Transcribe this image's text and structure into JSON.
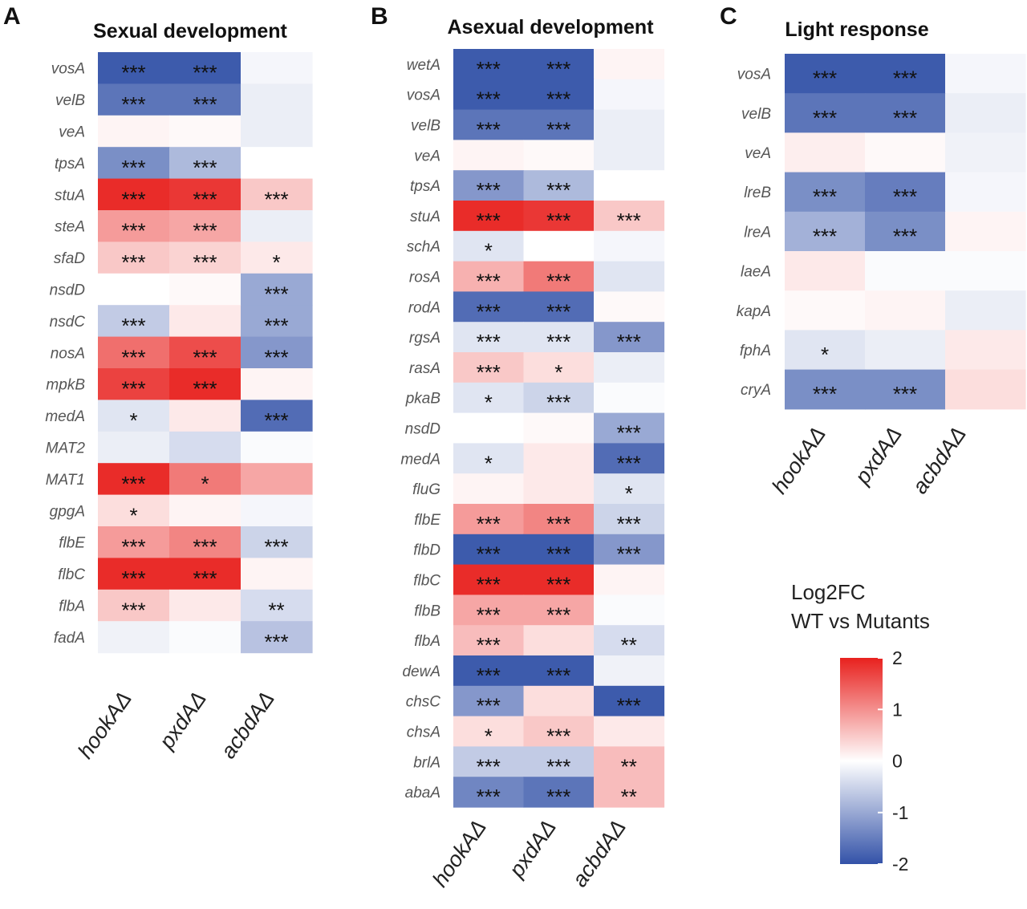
{
  "chart_data": [
    {
      "type": "heatmap",
      "panel": "A",
      "title": "Sexual development",
      "columns": [
        "hookAΔ",
        "pxdAΔ",
        "acbdAΔ"
      ],
      "rows": [
        "vosA",
        "velB",
        "veA",
        "tpsA",
        "stuA",
        "steA",
        "sfaD",
        "nsdD",
        "nsdC",
        "nosA",
        "mpkB",
        "medA",
        "MAT2",
        "MAT1",
        "gpgA",
        "flbE",
        "flbC",
        "flbA",
        "fadA"
      ],
      "values": [
        [
          -1.9,
          -1.9,
          -0.1
        ],
        [
          -1.6,
          -1.6,
          -0.2
        ],
        [
          0.1,
          0.05,
          -0.2
        ],
        [
          -1.3,
          -0.8,
          0.0
        ],
        [
          1.9,
          1.8,
          0.5
        ],
        [
          0.9,
          0.8,
          -0.2
        ],
        [
          0.5,
          0.4,
          0.2
        ],
        [
          0.0,
          0.05,
          -1.0
        ],
        [
          -0.6,
          0.2,
          -1.0
        ],
        [
          1.3,
          1.6,
          -1.2
        ],
        [
          1.7,
          1.9,
          0.1
        ],
        [
          -0.3,
          0.2,
          -1.7
        ],
        [
          -0.2,
          -0.4,
          -0.05
        ],
        [
          1.9,
          1.2,
          0.8
        ],
        [
          0.3,
          0.1,
          -0.1
        ],
        [
          0.9,
          1.1,
          -0.5
        ],
        [
          1.9,
          1.9,
          0.1
        ],
        [
          0.5,
          0.2,
          -0.4
        ],
        [
          -0.15,
          -0.05,
          -0.7
        ]
      ],
      "stars": [
        [
          "***",
          "***",
          ""
        ],
        [
          "***",
          "***",
          ""
        ],
        [
          "",
          "",
          ""
        ],
        [
          "***",
          "***",
          ""
        ],
        [
          "***",
          "***",
          "***"
        ],
        [
          "***",
          "***",
          ""
        ],
        [
          "***",
          "***",
          "*"
        ],
        [
          "",
          "",
          "***"
        ],
        [
          "***",
          "",
          "***"
        ],
        [
          "***",
          "***",
          "***"
        ],
        [
          "***",
          "***",
          ""
        ],
        [
          "*",
          "",
          "***"
        ],
        [
          "",
          "",
          ""
        ],
        [
          "***",
          "*",
          ""
        ],
        [
          "*",
          "",
          ""
        ],
        [
          "***",
          "***",
          "***"
        ],
        [
          "***",
          "***",
          ""
        ],
        [
          "***",
          "",
          "**"
        ],
        [
          "",
          "",
          "***"
        ]
      ]
    },
    {
      "type": "heatmap",
      "panel": "B",
      "title": "Asexual development",
      "columns": [
        "hookAΔ",
        "pxdAΔ",
        "acbdAΔ"
      ],
      "rows": [
        "wetA",
        "vosA",
        "velB",
        "veA",
        "tpsA",
        "stuA",
        "schA",
        "rosA",
        "rodA",
        "rgsA",
        "rasA",
        "pkaB",
        "nsdD",
        "medA",
        "fluG",
        "flbE",
        "flbD",
        "flbC",
        "flbB",
        "flbA",
        "dewA",
        "chsC",
        "chsA",
        "brlA",
        "abaA"
      ],
      "values": [
        [
          -1.9,
          -1.9,
          0.1
        ],
        [
          -1.9,
          -1.9,
          -0.1
        ],
        [
          -1.6,
          -1.6,
          -0.2
        ],
        [
          0.1,
          0.05,
          -0.2
        ],
        [
          -1.2,
          -0.8,
          0.0
        ],
        [
          1.9,
          1.8,
          0.5
        ],
        [
          -0.3,
          0.0,
          -0.1
        ],
        [
          0.7,
          1.2,
          -0.3
        ],
        [
          -1.7,
          -1.7,
          0.05
        ],
        [
          -0.3,
          -0.3,
          -1.2
        ],
        [
          0.5,
          0.3,
          -0.2
        ],
        [
          -0.3,
          -0.5,
          -0.05
        ],
        [
          0.0,
          0.05,
          -1.0
        ],
        [
          -0.3,
          0.2,
          -1.7
        ],
        [
          0.1,
          0.2,
          -0.3
        ],
        [
          0.9,
          1.1,
          -0.5
        ],
        [
          -1.9,
          -1.9,
          -1.2
        ],
        [
          1.9,
          1.9,
          0.1
        ],
        [
          0.8,
          0.8,
          -0.05
        ],
        [
          0.6,
          0.3,
          -0.4
        ],
        [
          -1.9,
          -1.9,
          -0.15
        ],
        [
          -1.2,
          0.3,
          -1.9
        ],
        [
          0.3,
          0.5,
          0.2
        ],
        [
          -0.6,
          -0.6,
          0.6
        ],
        [
          -1.4,
          -1.6,
          0.6
        ]
      ],
      "stars": [
        [
          "***",
          "***",
          ""
        ],
        [
          "***",
          "***",
          ""
        ],
        [
          "***",
          "***",
          ""
        ],
        [
          "",
          "",
          ""
        ],
        [
          "***",
          "***",
          ""
        ],
        [
          "***",
          "***",
          "***"
        ],
        [
          "*",
          "",
          ""
        ],
        [
          "***",
          "***",
          ""
        ],
        [
          "***",
          "***",
          ""
        ],
        [
          "***",
          "***",
          "***"
        ],
        [
          "***",
          "*",
          ""
        ],
        [
          "*",
          "***",
          ""
        ],
        [
          "",
          "",
          "***"
        ],
        [
          "*",
          "",
          "***"
        ],
        [
          "",
          "",
          "*"
        ],
        [
          "***",
          "***",
          "***"
        ],
        [
          "***",
          "***",
          "***"
        ],
        [
          "***",
          "***",
          ""
        ],
        [
          "***",
          "***",
          ""
        ],
        [
          "***",
          "",
          "**"
        ],
        [
          "***",
          "***",
          ""
        ],
        [
          "***",
          "",
          "***"
        ],
        [
          "*",
          "***",
          ""
        ],
        [
          "***",
          "***",
          "**"
        ],
        [
          "***",
          "***",
          "**"
        ]
      ]
    },
    {
      "type": "heatmap",
      "panel": "C",
      "title": "Light response",
      "columns": [
        "hookAΔ",
        "pxdAΔ",
        "acbdAΔ"
      ],
      "rows": [
        "vosA",
        "velB",
        "veA",
        "lreB",
        "lreA",
        "laeA",
        "kapA",
        "fphA",
        "cryA"
      ],
      "values": [
        [
          -1.9,
          -1.9,
          -0.1
        ],
        [
          -1.6,
          -1.6,
          -0.2
        ],
        [
          0.15,
          0.05,
          -0.15
        ],
        [
          -1.3,
          -1.5,
          -0.1
        ],
        [
          -0.9,
          -1.3,
          0.1
        ],
        [
          0.2,
          -0.05,
          -0.05
        ],
        [
          0.05,
          0.1,
          -0.2
        ],
        [
          -0.3,
          -0.2,
          0.2
        ],
        [
          -1.3,
          -1.3,
          0.3
        ]
      ],
      "stars": [
        [
          "***",
          "***",
          ""
        ],
        [
          "***",
          "***",
          ""
        ],
        [
          "",
          "",
          ""
        ],
        [
          "***",
          "***",
          ""
        ],
        [
          "***",
          "***",
          ""
        ],
        [
          "",
          "",
          ""
        ],
        [
          "",
          "",
          ""
        ],
        [
          "*",
          "",
          ""
        ],
        [
          "***",
          "***",
          ""
        ]
      ]
    }
  ],
  "legend": {
    "title_line1": "Log2FC",
    "title_line2": "WT vs Mutants",
    "ticks": [
      2,
      1,
      0,
      -1,
      -2
    ],
    "tick_labels": [
      "2",
      "1",
      "0",
      "-1",
      "-2"
    ],
    "range": [
      -2,
      2
    ],
    "colors": {
      "high": "#e8211e",
      "mid": "#ffffff",
      "low": "#3352a8"
    }
  }
}
